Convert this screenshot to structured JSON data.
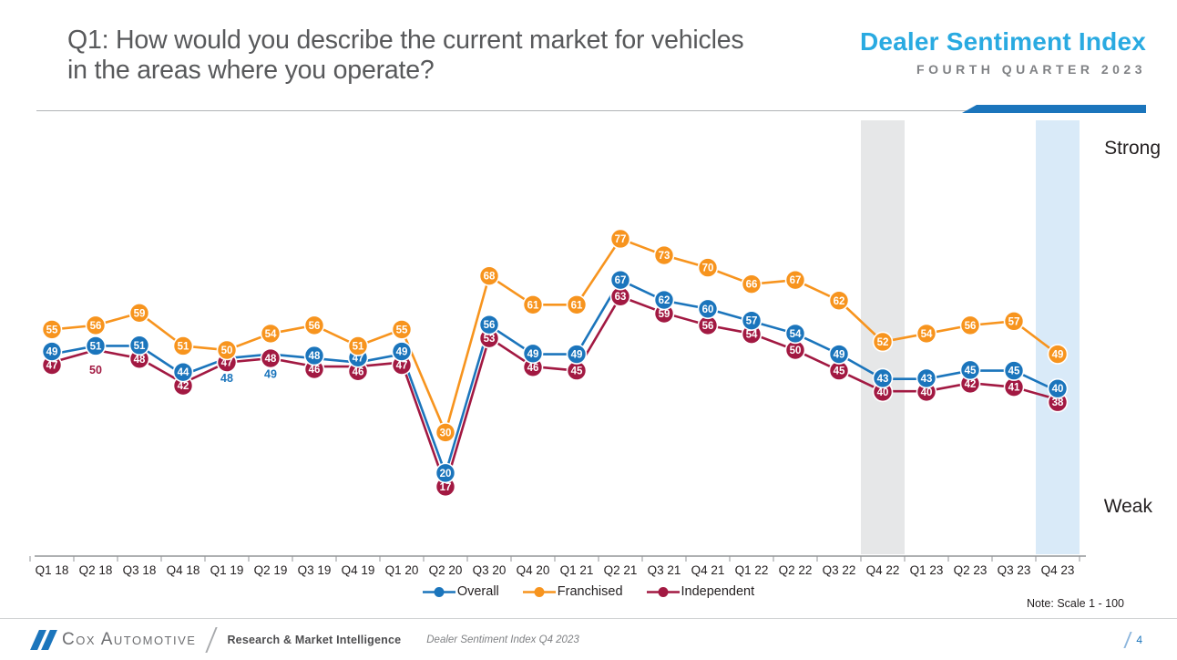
{
  "header": {
    "question": "Q1: How would you describe the current market for vehicles in the areas where you operate?",
    "brand_title": "Dealer Sentiment Index",
    "brand_subtitle": "FOURTH QUARTER 2023"
  },
  "chart_data": {
    "type": "line",
    "title": "Q1: How would you describe the current market for vehicles in the areas where you operate?",
    "categories": [
      "Q1 18",
      "Q2 18",
      "Q3 18",
      "Q4 18",
      "Q1 19",
      "Q2 19",
      "Q3 19",
      "Q4 19",
      "Q1 20",
      "Q2 20",
      "Q3 20",
      "Q4 20",
      "Q1 21",
      "Q2 21",
      "Q3 21",
      "Q4 21",
      "Q1 22",
      "Q2 22",
      "Q3 22",
      "Q4 22",
      "Q1 23",
      "Q2 23",
      "Q3 23",
      "Q4 23"
    ],
    "series": [
      {
        "name": "Overall",
        "color": "#1b75bc",
        "values": [
          49,
          51,
          51,
          44,
          48,
          49,
          48,
          47,
          49,
          20,
          56,
          49,
          49,
          67,
          62,
          60,
          57,
          54,
          49,
          43,
          43,
          45,
          45,
          40
        ]
      },
      {
        "name": "Franchised",
        "color": "#f7941e",
        "values": [
          55,
          56,
          59,
          51,
          50,
          54,
          56,
          51,
          55,
          30,
          68,
          61,
          61,
          77,
          73,
          70,
          66,
          67,
          62,
          52,
          54,
          56,
          57,
          49
        ]
      },
      {
        "name": "Independent",
        "color": "#a21942",
        "values": [
          47,
          50,
          48,
          42,
          47,
          48,
          46,
          46,
          47,
          17,
          53,
          46,
          45,
          63,
          59,
          56,
          54,
          50,
          45,
          40,
          40,
          42,
          41,
          38
        ]
      }
    ],
    "ylim": [
      0,
      100
    ],
    "grid": false,
    "legend_position": "bottom",
    "scale_labels": {
      "top": "Strong",
      "bottom": "Weak"
    },
    "highlight_bands": [
      {
        "category": "Q4 22",
        "color": "#e6e7e8"
      },
      {
        "category": "Q4 23",
        "color": "#d9eaf8"
      }
    ],
    "label_overrides": [
      {
        "series": "Independent",
        "category": "Q2 18",
        "position": "below"
      },
      {
        "series": "Overall",
        "category": "Q1 19",
        "position": "below"
      },
      {
        "series": "Overall",
        "category": "Q2 19",
        "position": "below"
      }
    ]
  },
  "note": "Note: Scale 1 - 100",
  "footer": {
    "brand": "Cox Automotive",
    "division": "Research & Market Intelligence",
    "doc_title": "Dealer Sentiment Index Q4 2023",
    "page_number": "4"
  }
}
